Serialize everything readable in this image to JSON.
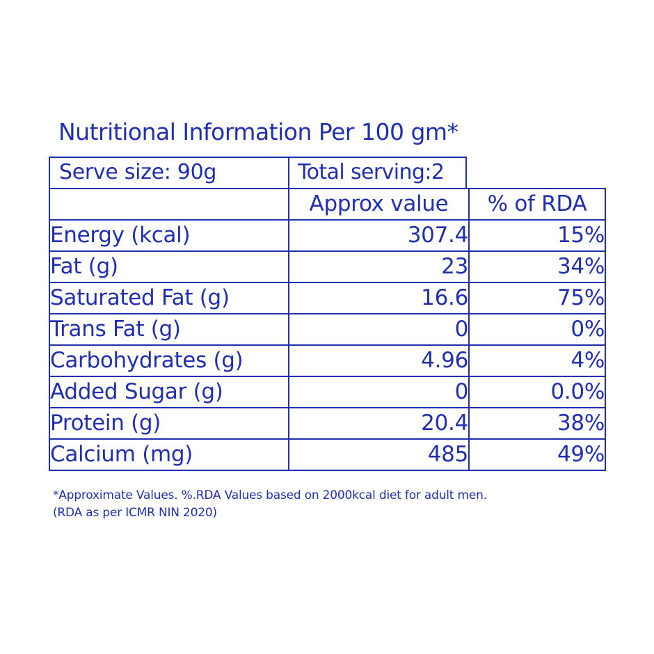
{
  "title": "Nutritional Information Per 100 gm*",
  "serve_size": "Serve size: 90g",
  "total_serving": "Total serving:2",
  "headers": {
    "approx": "Approx value",
    "rda": "% of RDA"
  },
  "rows": [
    {
      "name": "Energy (kcal)",
      "value": "307.4",
      "rda": "15%"
    },
    {
      "name": "Fat (g)",
      "value": "23",
      "rda": "34%"
    },
    {
      "name": "Saturated Fat (g)",
      "value": "16.6",
      "rda": "75%"
    },
    {
      "name": "Trans Fat (g)",
      "value": "0",
      "rda": "0%"
    },
    {
      "name": "Carbohydrates (g)",
      "value": "4.96",
      "rda": "4%"
    },
    {
      "name": "Added Sugar (g)",
      "value": "0",
      "rda": "0.0%"
    },
    {
      "name": "Protein (g)",
      "value": "20.4",
      "rda": "38%"
    },
    {
      "name": "Calcium (mg)",
      "value": "485",
      "rda": "49%"
    }
  ],
  "footnote": {
    "line1": "*Approximate Values. %.RDA Values based on 2000kcal diet for adult men.",
    "line2": "(RDA as per ICMR NIN 2020)"
  },
  "colors": {
    "text": "#1f2fb0",
    "border": "#1f2fb0",
    "background": "#ffffff"
  }
}
